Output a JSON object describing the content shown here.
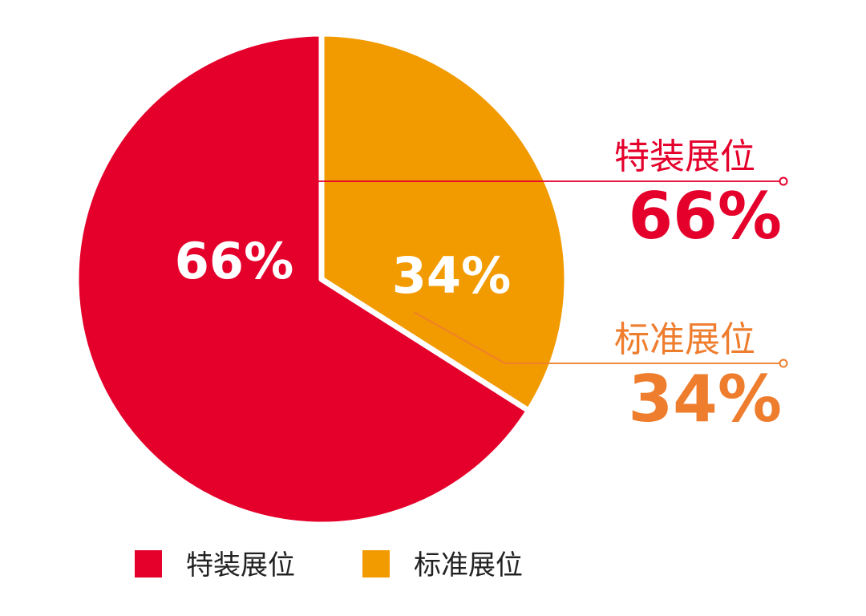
{
  "chart_data": {
    "type": "pie",
    "slices": [
      {
        "label": "特装展位",
        "value": 66,
        "display": "66%",
        "color": "#E4002B",
        "callout_color": "#E4002B"
      },
      {
        "label": "标准展位",
        "value": 34,
        "display": "34%",
        "color": "#F29B00",
        "callout_color": "#EE7D2E"
      }
    ],
    "legend": [
      {
        "label": "特装展位",
        "color": "#E4002B"
      },
      {
        "label": "标准展位",
        "color": "#F29B00"
      }
    ],
    "legend_position": "bottom",
    "start_angle": "12 o'clock",
    "direction": "counter-clockwise for red slice; orange slice clockwise"
  }
}
